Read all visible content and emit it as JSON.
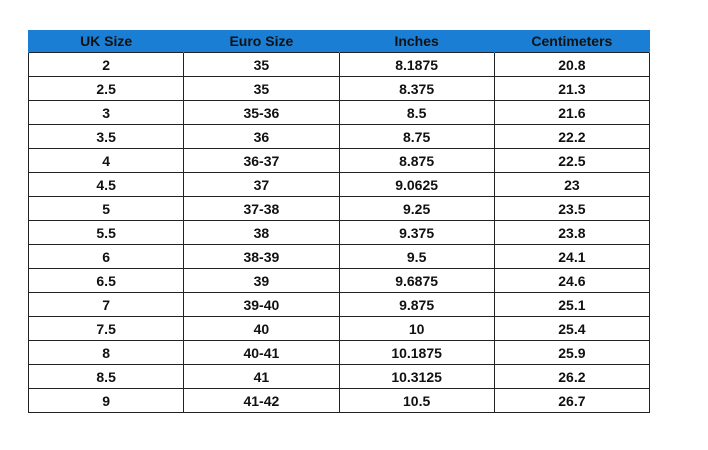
{
  "table": {
    "header": [
      "UK Size",
      "Euro Size",
      "Inches",
      "Centimeters"
    ],
    "rows": [
      [
        "2",
        "35",
        "8.1875",
        "20.8"
      ],
      [
        "2.5",
        "35",
        "8.375",
        "21.3"
      ],
      [
        "3",
        "35-36",
        "8.5",
        "21.6"
      ],
      [
        "3.5",
        "36",
        "8.75",
        "22.2"
      ],
      [
        "4",
        "36-37",
        "8.875",
        "22.5"
      ],
      [
        "4.5",
        "37",
        "9.0625",
        "23"
      ],
      [
        "5",
        "37-38",
        "9.25",
        "23.5"
      ],
      [
        "5.5",
        "38",
        "9.375",
        "23.8"
      ],
      [
        "6",
        "38-39",
        "9.5",
        "24.1"
      ],
      [
        "6.5",
        "39",
        "9.6875",
        "24.6"
      ],
      [
        "7",
        "39-40",
        "9.875",
        "25.1"
      ],
      [
        "7.5",
        "40",
        "10",
        "25.4"
      ],
      [
        "8",
        "40-41",
        "10.1875",
        "25.9"
      ],
      [
        "8.5",
        "41",
        "10.3125",
        "26.2"
      ],
      [
        "9",
        "41-42",
        "10.5",
        "26.7"
      ]
    ]
  }
}
